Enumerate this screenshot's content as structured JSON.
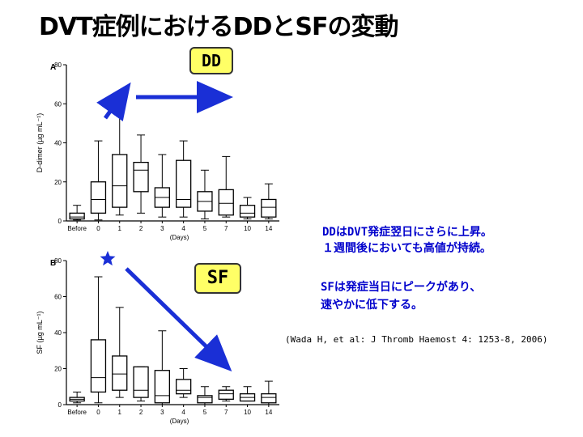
{
  "title": "DVT症例におけるDDとSFの変動",
  "tags": {
    "dd": "DD",
    "sf": "SF"
  },
  "notes": {
    "dd_line1": "DDはDVT発症翌日にさらに上昇。",
    "dd_line2": "１週間後においても高値が持続。",
    "sf_line1": "SFは発症当日にピークがあり、",
    "sf_line2": "速やかに低下する。"
  },
  "citation": "(Wada H, et al: J Thromb Haemost 4: 1253-8, 2006)",
  "colors": {
    "arrow": "#1a2fd6",
    "note_text": "#0000cc",
    "tag_bg": "#ffff66"
  },
  "chart_data": [
    {
      "type": "box",
      "panel_label": "A",
      "ylabel": "D-dimer (µg mL⁻¹)",
      "xlabel": "(Days)",
      "categories": [
        "Before",
        "0",
        "1",
        "2",
        "3",
        "4",
        "5",
        "7",
        "10",
        "14"
      ],
      "ylim": [
        0,
        80
      ],
      "yticks": [
        0,
        20,
        40,
        60,
        80
      ],
      "boxes": [
        {
          "min": 0.5,
          "q1": 1,
          "median": 2,
          "q3": 4,
          "max": 8
        },
        {
          "min": 0.5,
          "q1": 4,
          "median": 11,
          "q3": 20,
          "max": 41
        },
        {
          "min": 3,
          "q1": 7,
          "median": 18,
          "q3": 34,
          "max": 56
        },
        {
          "min": 4,
          "q1": 15,
          "median": 26,
          "q3": 30,
          "max": 44
        },
        {
          "min": 2,
          "q1": 7,
          "median": 12,
          "q3": 17,
          "max": 34
        },
        {
          "min": 2,
          "q1": 7,
          "median": 11,
          "q3": 31,
          "max": 41
        },
        {
          "min": 1,
          "q1": 5,
          "median": 10,
          "q3": 15,
          "max": 26
        },
        {
          "min": 2,
          "q1": 3,
          "median": 9,
          "q3": 16,
          "max": 33
        },
        {
          "min": 1,
          "q1": 2,
          "median": 4,
          "q3": 8,
          "max": 12
        },
        {
          "min": 1,
          "q1": 2,
          "median": 7,
          "q3": 11,
          "max": 19
        }
      ]
    },
    {
      "type": "box",
      "panel_label": "B",
      "ylabel": "SF (µg mL⁻¹)",
      "xlabel": "(Days)",
      "categories": [
        "Before",
        "0",
        "1",
        "2",
        "3",
        "4",
        "5",
        "7",
        "10",
        "14"
      ],
      "ylim": [
        0,
        80
      ],
      "yticks": [
        0,
        20,
        40,
        60,
        80
      ],
      "boxes": [
        {
          "min": 1,
          "q1": 2,
          "median": 3,
          "q3": 4,
          "max": 7
        },
        {
          "min": 1,
          "q1": 7,
          "median": 15,
          "q3": 36,
          "max": 71
        },
        {
          "min": 4,
          "q1": 8,
          "median": 17,
          "q3": 27,
          "max": 54
        },
        {
          "min": 2,
          "q1": 4,
          "median": 8,
          "q3": 21,
          "max": 21
        },
        {
          "min": 0,
          "q1": 1,
          "median": 5,
          "q3": 19,
          "max": 41
        },
        {
          "min": 4,
          "q1": 6,
          "median": 8,
          "q3": 14,
          "max": 20
        },
        {
          "min": 0,
          "q1": 1,
          "median": 4,
          "q3": 5,
          "max": 10
        },
        {
          "min": 2,
          "q1": 3,
          "median": 6,
          "q3": 8,
          "max": 10
        },
        {
          "min": 2,
          "q1": 2,
          "median": 4,
          "q3": 6,
          "max": 10
        },
        {
          "min": 0,
          "q1": 1,
          "median": 4,
          "q3": 6,
          "max": 13
        }
      ]
    }
  ]
}
